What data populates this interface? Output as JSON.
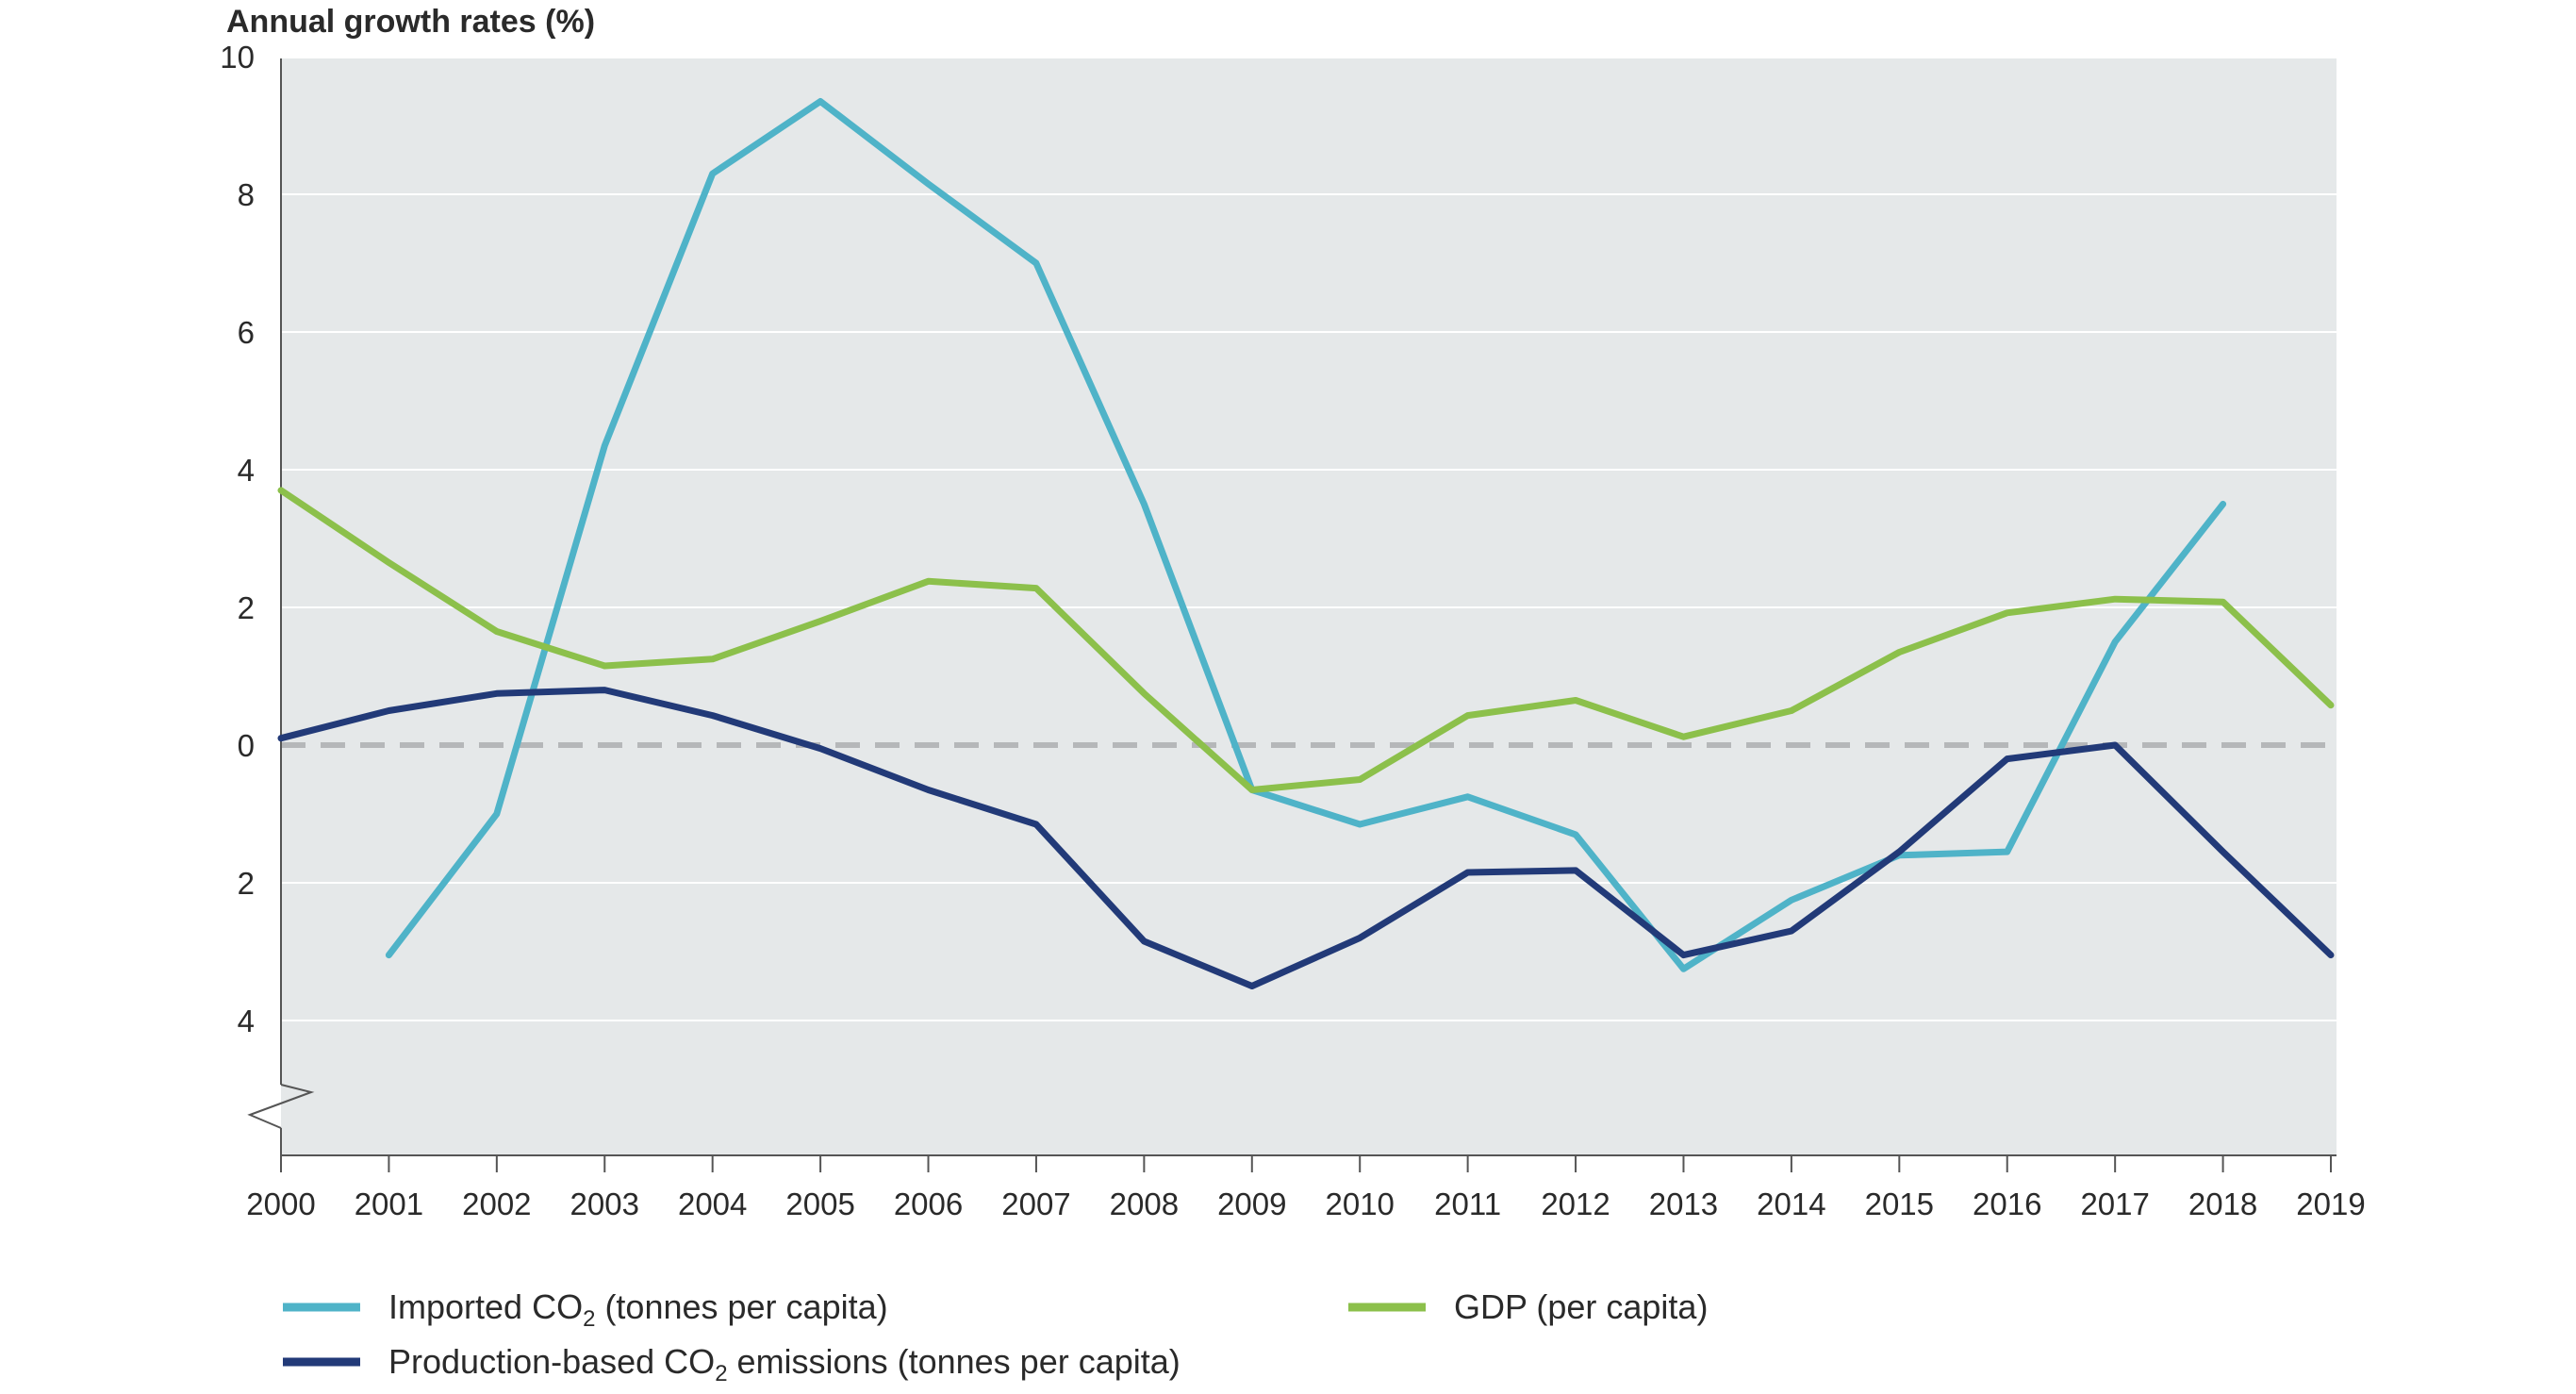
{
  "chart_data": {
    "type": "line",
    "title": "",
    "ylabel": "Annual growth rates (%)",
    "xlabel": "",
    "x": [
      "2000",
      "2001",
      "2002",
      "2003",
      "2004",
      "2005",
      "2006",
      "2007",
      "2008",
      "2009",
      "2010",
      "2011",
      "2012",
      "2013",
      "2014",
      "2015",
      "2016",
      "2017",
      "2018",
      "2019"
    ],
    "ylim": [
      -6,
      10
    ],
    "yticks": [
      -4,
      -2,
      0,
      2,
      4,
      6,
      8,
      10
    ],
    "ytick_labels": [
      "4",
      "2",
      "0",
      "2",
      "4",
      "6",
      "8",
      "10"
    ],
    "grid": true,
    "zero_line": "dashed",
    "axis_break": "bottom of y-axis",
    "legend_position": "bottom",
    "colors": {
      "plot_background": "#e5e8e9",
      "grid": "#ffffff",
      "zero_line": "#b5b7b9",
      "axis": "#555555"
    },
    "series": [
      {
        "name": "Imported CO",
        "name_sub": "2",
        "name_suffix": " (tonnes per capita)",
        "color": "#4fb3c8",
        "values": [
          null,
          -3.05,
          -1.0,
          4.35,
          8.3,
          9.35,
          8.15,
          7.0,
          3.5,
          -0.65,
          -1.15,
          -0.75,
          -1.3,
          -3.25,
          -2.25,
          -1.6,
          -1.55,
          1.5,
          3.5,
          null
        ]
      },
      {
        "name": "GDP (per capita)",
        "name_sub": "",
        "name_suffix": "",
        "color": "#8cc04b",
        "values": [
          3.7,
          2.65,
          1.65,
          1.15,
          1.25,
          1.8,
          2.38,
          2.28,
          0.75,
          -0.65,
          -0.5,
          0.43,
          0.65,
          0.12,
          0.5,
          1.35,
          1.92,
          2.12,
          2.08,
          0.58
        ]
      },
      {
        "name": "Production-based CO",
        "name_sub": "2",
        "name_suffix": " emissions (tonnes per capita)",
        "color": "#223a78",
        "values": [
          0.1,
          0.5,
          0.75,
          0.8,
          0.43,
          -0.05,
          -0.65,
          -1.15,
          -2.85,
          -3.5,
          -2.8,
          -1.85,
          -1.82,
          -3.05,
          -2.7,
          -1.55,
          -0.2,
          0.0,
          -1.55,
          -3.05
        ]
      }
    ],
    "legend_layout": [
      {
        "series": 0,
        "row": 0,
        "col": 0
      },
      {
        "series": 1,
        "row": 0,
        "col": 1
      },
      {
        "series": 2,
        "row": 1,
        "col": 0
      }
    ]
  }
}
